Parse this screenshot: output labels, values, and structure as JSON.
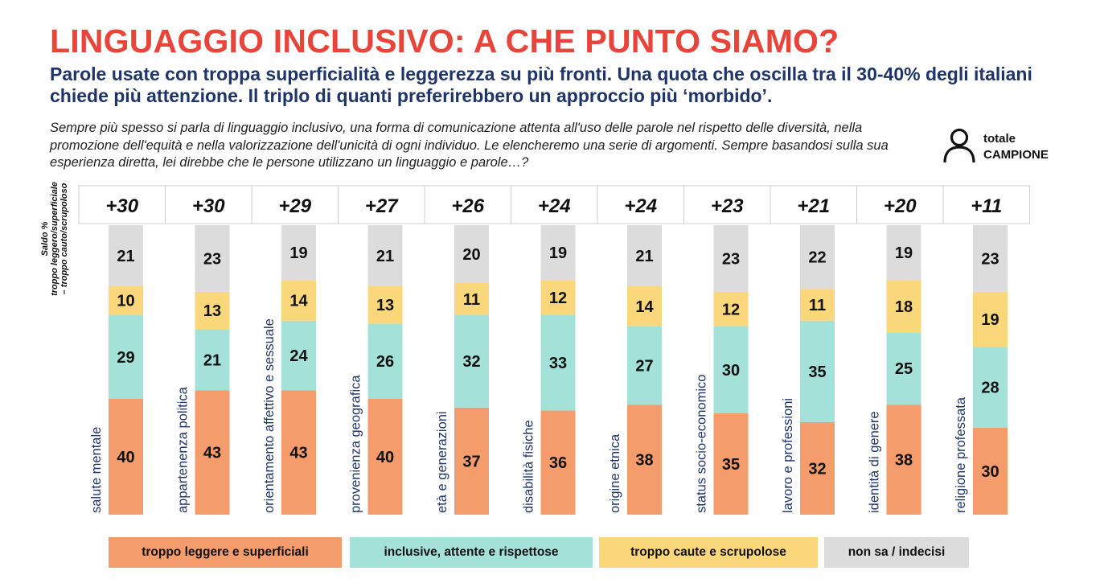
{
  "header": {
    "title": "LINGUAGGIO INCLUSIVO: A CHE PUNTO SIAMO?",
    "subtitle": "Parole usate con troppa superficialità e leggerezza su più fronti. Una quota che oscilla tra il 30-40% degli italiani chiede più attenzione. Il triplo di quanti preferirebbero un approccio più ‘morbido’.",
    "question": "Sempre più spesso si parla di linguaggio inclusivo, una forma di comunicazione attenta all'uso delle parole nel rispetto delle diversità, nella promozione dell'equità e nella valorizzazione dell'unicità di ogni individuo. Le elencheremo una serie di argomenti. Sempre basandosi sulla sua esperienza diretta, lei direbbe che le persone utilizzano un linguaggio e parole…?"
  },
  "badge": {
    "line1": "totale",
    "line2": "CAMPIONE",
    "icon": "person-icon"
  },
  "side_label": {
    "line1": "Saldo %",
    "line2": "troppo leggero/superficiale",
    "line3": "– troppo cauto/scrupoloso"
  },
  "colors": {
    "title": "#e8443a",
    "subtitle": "#1f3468",
    "troppo_leggere": "#f49c6b",
    "inclusive": "#a4e1d8",
    "troppo_caute": "#fad77a",
    "non_sa": "#dcdcdc",
    "category_label": "#1f3468"
  },
  "chart_data": {
    "type": "bar",
    "stacked": true,
    "orientation": "vertical",
    "categories": [
      "salute mentale",
      "appartenenza politica",
      "orientamento affettivo e sessuale",
      "provenienza geografica",
      "età e generazioni",
      "disabilità fisiche",
      "origine etnica",
      "status socio-economico",
      "lavoro e professioni",
      "identità di genere",
      "religione professata"
    ],
    "saldo": [
      "+30",
      "+30",
      "+29",
      "+27",
      "+26",
      "+24",
      "+24",
      "+23",
      "+21",
      "+20",
      "+11"
    ],
    "series": [
      {
        "name": "troppo leggere e superficiali",
        "values": [
          40,
          43,
          43,
          40,
          37,
          36,
          38,
          35,
          32,
          38,
          30
        ]
      },
      {
        "name": "inclusive, attente e rispettose",
        "values": [
          29,
          21,
          24,
          26,
          32,
          33,
          27,
          30,
          35,
          25,
          28
        ]
      },
      {
        "name": "troppo caute e scrupolose",
        "values": [
          10,
          13,
          14,
          13,
          11,
          12,
          14,
          12,
          11,
          18,
          19
        ]
      },
      {
        "name": "non sa / indecisi",
        "values": [
          21,
          23,
          19,
          21,
          20,
          19,
          21,
          23,
          22,
          19,
          23
        ]
      }
    ],
    "ylim": [
      0,
      100
    ],
    "legend_position": "bottom"
  },
  "legend": [
    {
      "label": "troppo leggere e superficiali"
    },
    {
      "label": "inclusive, attente e rispettose"
    },
    {
      "label": "troppo caute e scrupolose"
    },
    {
      "label": "non sa / indecisi"
    }
  ]
}
